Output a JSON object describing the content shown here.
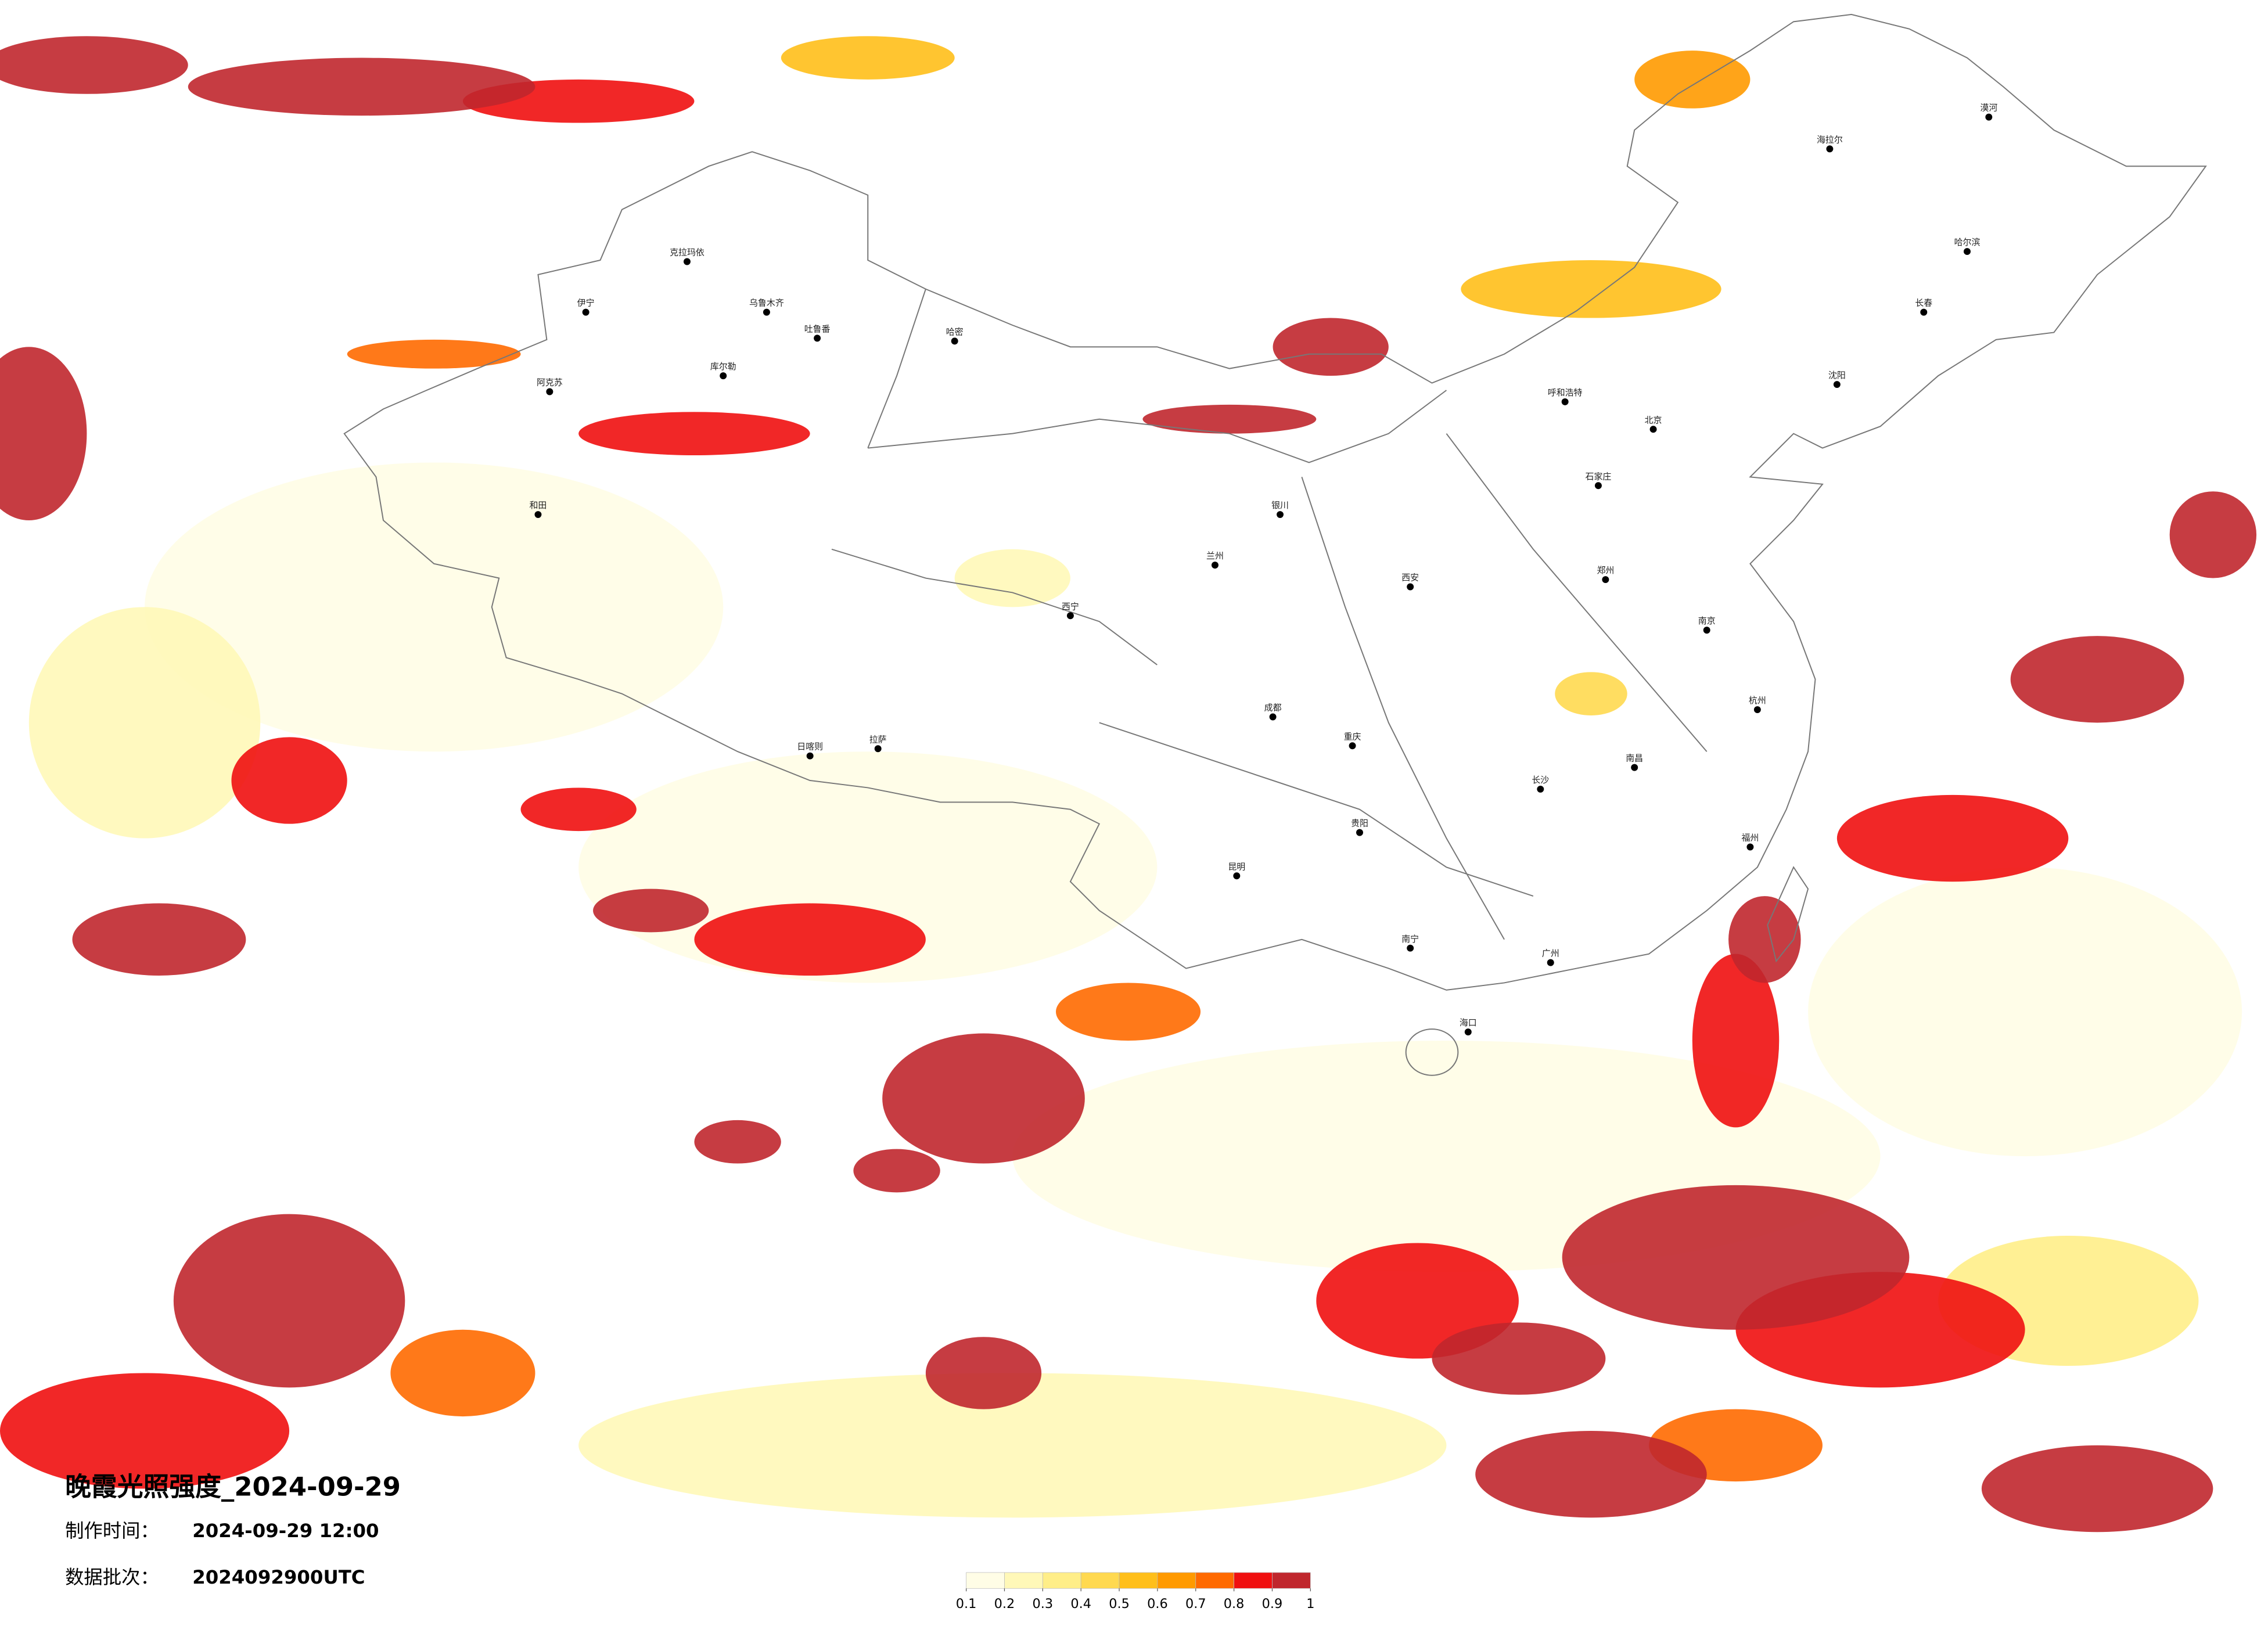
{
  "map": {
    "title": "晚霞光照强度_2024-09-29",
    "made_label": "制作时间：",
    "made_value": "2024-09-29 12:00",
    "batch_label": "数据批次：",
    "batch_value": "2024092900UTC",
    "colorbar": {
      "ticks": [
        0.1,
        0.2,
        0.3,
        0.4,
        0.5,
        0.6,
        0.7,
        0.8,
        0.9,
        1
      ],
      "colors": [
        "#fffde6",
        "#fff8b8",
        "#ffee88",
        "#ffd950",
        "#ffbf1a",
        "#ff9a00",
        "#ff6a00",
        "#f01010",
        "#c0272d"
      ]
    },
    "cities": [
      {
        "name": "克拉玛依"
      },
      {
        "name": "伊宁"
      },
      {
        "name": "乌鲁木齐"
      },
      {
        "name": "吐鲁番"
      },
      {
        "name": "哈密"
      },
      {
        "name": "库尔勒"
      },
      {
        "name": "阿克苏"
      },
      {
        "name": "和田"
      },
      {
        "name": "日喀则"
      },
      {
        "name": "拉萨"
      },
      {
        "name": "西宁"
      },
      {
        "name": "兰州"
      },
      {
        "name": "银川"
      },
      {
        "name": "呼和浩特"
      },
      {
        "name": "北京"
      },
      {
        "name": "石家庄"
      },
      {
        "name": "郑州"
      },
      {
        "name": "西安"
      },
      {
        "name": "成都"
      },
      {
        "name": "重庆"
      },
      {
        "name": "贵阳"
      },
      {
        "name": "昆明"
      },
      {
        "name": "南宁"
      },
      {
        "name": "广州"
      },
      {
        "name": "海口"
      },
      {
        "name": "长沙"
      },
      {
        "name": "南昌"
      },
      {
        "name": "福州"
      },
      {
        "name": "杭州"
      },
      {
        "name": "南京"
      },
      {
        "name": "沈阳"
      },
      {
        "name": "长春"
      },
      {
        "name": "哈尔滨"
      },
      {
        "name": "海拉尔"
      },
      {
        "name": "漠河"
      }
    ]
  }
}
